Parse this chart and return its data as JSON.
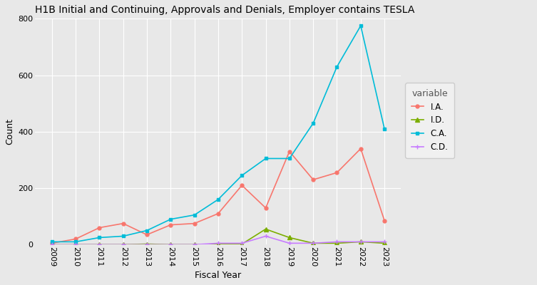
{
  "title": "H1B Initial and Continuing, Approvals and Denials, Employer contains TESLA",
  "xlabel": "Fiscal Year",
  "ylabel": "Count",
  "legend_title": "variable",
  "years": [
    2009,
    2010,
    2011,
    2012,
    2013,
    2014,
    2015,
    2016,
    2017,
    2018,
    2019,
    2020,
    2021,
    2022,
    2023
  ],
  "IA": [
    5,
    20,
    60,
    75,
    35,
    70,
    75,
    110,
    210,
    130,
    330,
    230,
    255,
    340,
    85
  ],
  "ID": [
    0,
    0,
    0,
    0,
    2,
    0,
    0,
    2,
    2,
    55,
    25,
    5,
    5,
    10,
    5
  ],
  "CA": [
    10,
    10,
    25,
    30,
    50,
    90,
    105,
    160,
    245,
    305,
    305,
    430,
    630,
    775,
    410
  ],
  "CD": [
    0,
    0,
    0,
    0,
    0,
    0,
    0,
    5,
    5,
    30,
    5,
    5,
    10,
    10,
    10
  ],
  "IA_color": "#f8766d",
  "ID_color": "#7cae00",
  "CA_color": "#00bcd8",
  "CD_color": "#c77cff",
  "background_color": "#e8e8e8",
  "plot_bg_color": "#e8e8e8",
  "grid_color": "#ffffff",
  "legend_bg": "#f0f0f0",
  "ylim": [
    0,
    800
  ],
  "yticks": [
    0,
    200,
    400,
    600,
    800
  ],
  "title_fontsize": 10,
  "axis_label_fontsize": 9,
  "tick_fontsize": 8,
  "legend_fontsize": 8.5,
  "legend_title_fontsize": 9
}
